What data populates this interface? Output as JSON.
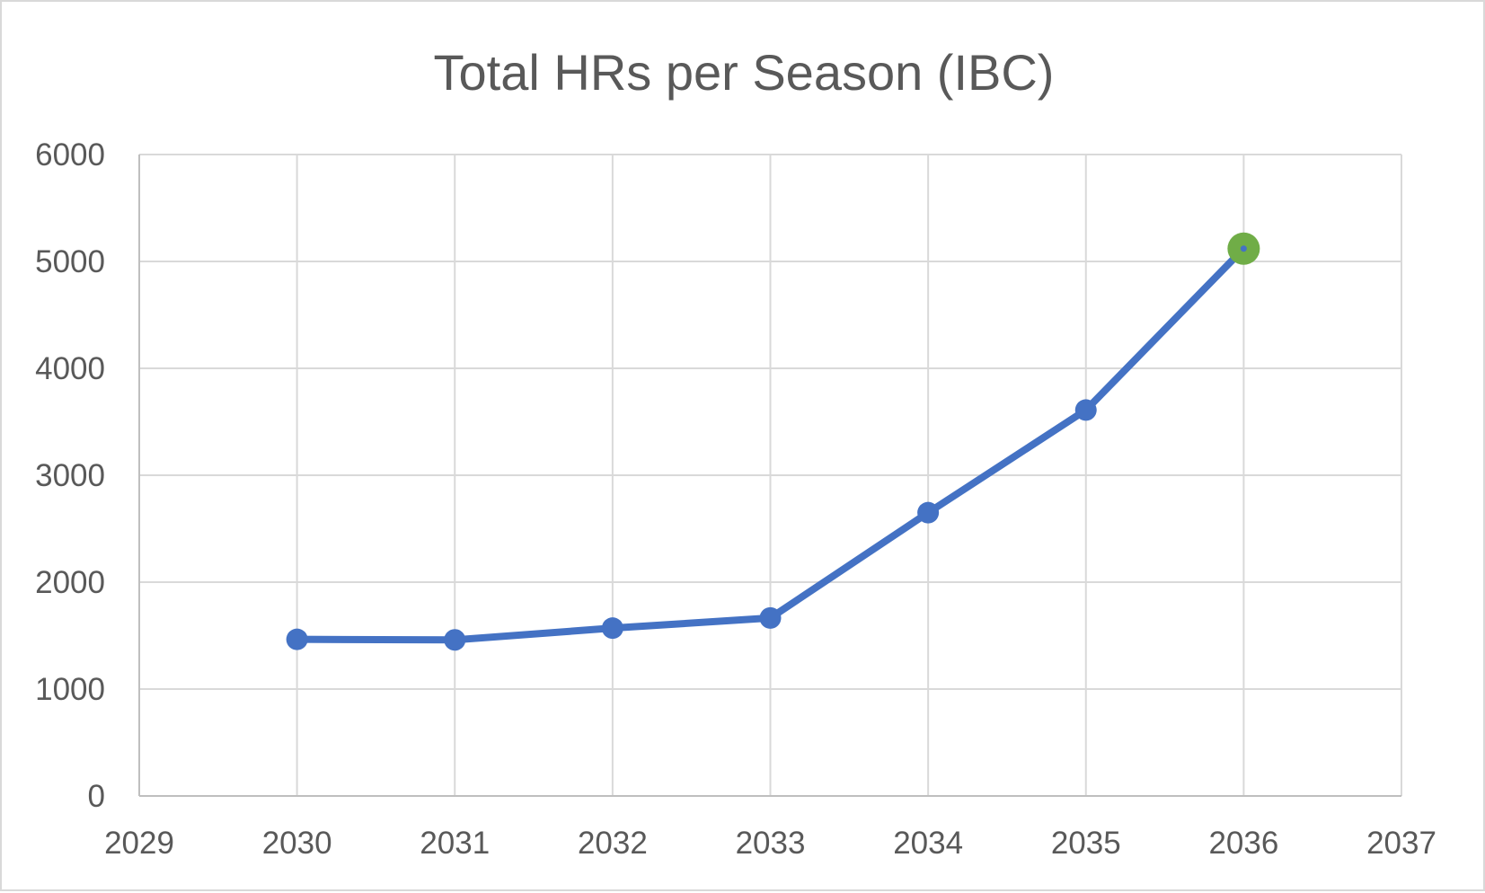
{
  "chart_data": {
    "type": "scatter",
    "title": "Total HRs per Season (IBC)",
    "xlabel": "",
    "ylabel": "",
    "xlim": [
      2029,
      2037
    ],
    "ylim": [
      0,
      6000
    ],
    "x_ticks": [
      2029,
      2030,
      2031,
      2032,
      2033,
      2034,
      2035,
      2036,
      2037
    ],
    "y_ticks": [
      0,
      1000,
      2000,
      3000,
      4000,
      5000,
      6000
    ],
    "grid": true,
    "legend": "none",
    "lines_connect_points": true,
    "series": [
      {
        "x": [
          2030,
          2031,
          2032,
          2033,
          2034,
          2035,
          2036
        ],
        "y": [
          1465,
          1460,
          1570,
          1665,
          2650,
          3610,
          5120
        ],
        "color": "#4472c4",
        "highlighted_point_index": 6,
        "highlight_color": "#70ad47"
      }
    ]
  }
}
